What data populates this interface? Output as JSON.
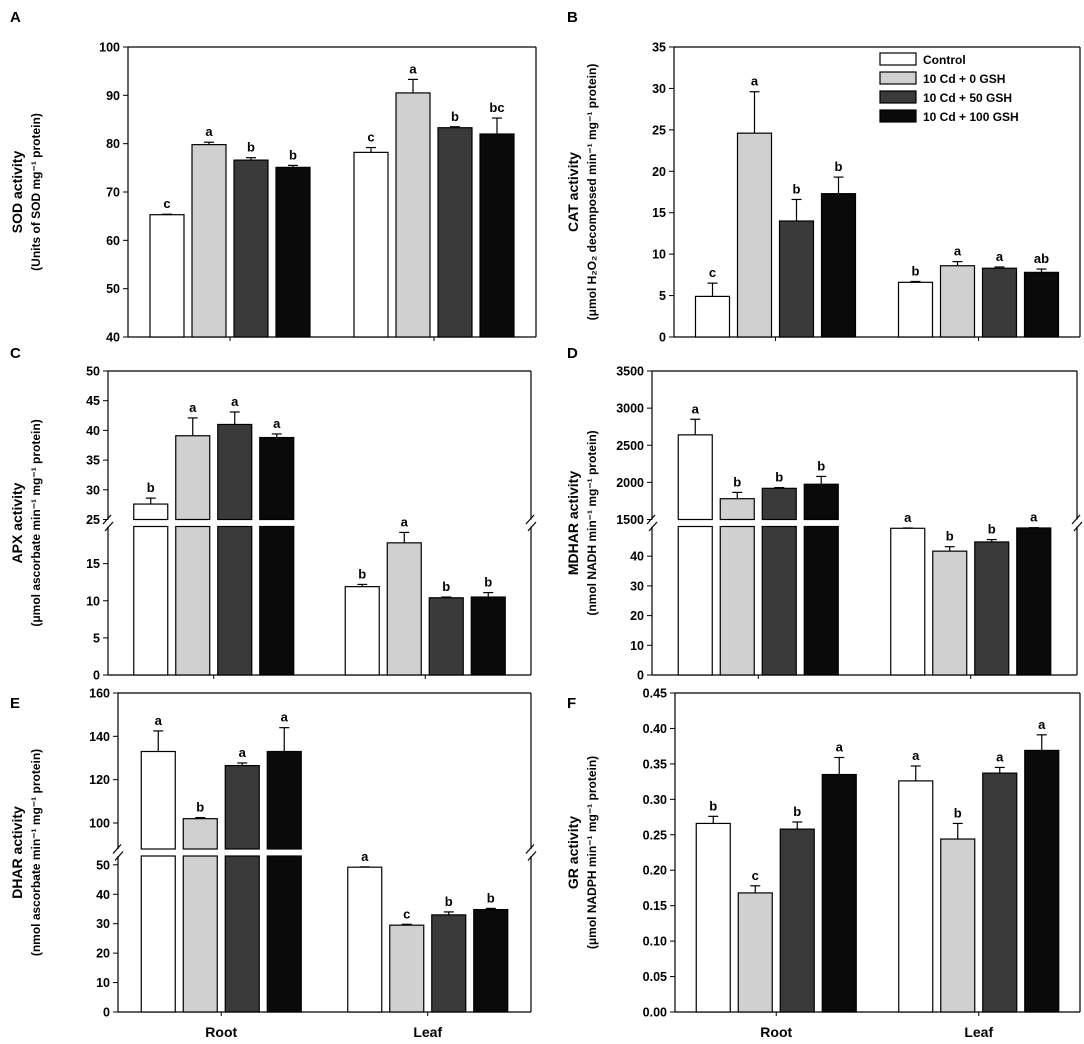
{
  "figure": {
    "categories": [
      "Root",
      "Leaf"
    ],
    "legend": [
      "Control",
      "10 Cd + 0 GSH",
      "10 Cd + 50 GSH",
      "10 Cd + 100 GSH"
    ],
    "colors": [
      "#ffffff",
      "#d0d0d0",
      "#3a3a3a",
      "#0a0a0a"
    ]
  },
  "chart_data": [
    {
      "type": "bar",
      "panel": "A",
      "ylabel": "SOD activity",
      "ylabel_unit": "(Units of SOD mg⁻¹ protein)",
      "categories": [
        "Root",
        "Leaf"
      ],
      "y_segments": [
        {
          "range": [
            40,
            100
          ],
          "ticks": [
            40,
            50,
            60,
            70,
            80,
            90,
            100
          ]
        }
      ],
      "series": [
        {
          "name": "Control",
          "values": [
            65.3,
            78.2
          ],
          "errors": [
            0.1,
            1.0
          ],
          "letters": [
            "c",
            "c"
          ]
        },
        {
          "name": "10 Cd + 0 GSH",
          "values": [
            79.8,
            90.5
          ],
          "errors": [
            0.5,
            2.8
          ],
          "letters": [
            "a",
            "a"
          ]
        },
        {
          "name": "10 Cd + 50 GSH",
          "values": [
            76.6,
            83.3
          ],
          "errors": [
            0.5,
            0.2
          ],
          "letters": [
            "b",
            "b"
          ]
        },
        {
          "name": "10 Cd + 100 GSH",
          "values": [
            75.1,
            82.0
          ],
          "errors": [
            0.4,
            3.3
          ],
          "letters": [
            "b",
            "bc"
          ]
        }
      ]
    },
    {
      "type": "bar",
      "panel": "B",
      "ylabel": "CAT activity",
      "ylabel_unit": "(μmol H₂O₂ decomposed min⁻¹ mg⁻¹ protein)",
      "categories": [
        "Root",
        "Leaf"
      ],
      "legend_position": "top-right",
      "y_segments": [
        {
          "range": [
            0,
            35
          ],
          "ticks": [
            0,
            5,
            10,
            15,
            20,
            25,
            30,
            35
          ]
        }
      ],
      "series": [
        {
          "name": "Control",
          "values": [
            4.9,
            6.6
          ],
          "errors": [
            1.6,
            0.1
          ],
          "letters": [
            "c",
            "b"
          ]
        },
        {
          "name": "10 Cd + 0 GSH",
          "values": [
            24.6,
            8.6
          ],
          "errors": [
            5.0,
            0.5
          ],
          "letters": [
            "a",
            "a"
          ]
        },
        {
          "name": "10 Cd + 50 GSH",
          "values": [
            14.0,
            8.3
          ],
          "errors": [
            2.6,
            0.15
          ],
          "letters": [
            "b",
            "a"
          ]
        },
        {
          "name": "10 Cd + 100 GSH",
          "values": [
            17.3,
            7.8
          ],
          "errors": [
            2.0,
            0.4
          ],
          "letters": [
            "b",
            "ab"
          ]
        }
      ]
    },
    {
      "type": "bar",
      "panel": "C",
      "ylabel": "APX activity",
      "ylabel_unit": "(μmol ascorbate min⁻¹ mg⁻¹ protein)",
      "categories": [
        "Root",
        "Leaf"
      ],
      "y_segments": [
        {
          "range": [
            0,
            20
          ],
          "ticks": [
            0,
            5,
            10,
            15
          ]
        },
        {
          "range": [
            25,
            50
          ],
          "ticks": [
            25,
            30,
            35,
            40,
            45,
            50
          ]
        }
      ],
      "series": [
        {
          "name": "Control",
          "values": [
            27.6,
            11.9
          ],
          "errors": [
            1.0,
            0.3
          ],
          "letters": [
            "b",
            "b"
          ]
        },
        {
          "name": "10 Cd + 0 GSH",
          "values": [
            39.1,
            17.8
          ],
          "errors": [
            3.0,
            1.4
          ],
          "letters": [
            "a",
            "a"
          ]
        },
        {
          "name": "10 Cd + 50 GSH",
          "values": [
            41.0,
            10.4
          ],
          "errors": [
            2.1,
            0.1
          ],
          "letters": [
            "a",
            "b"
          ]
        },
        {
          "name": "10 Cd + 100 GSH",
          "values": [
            38.8,
            10.5
          ],
          "errors": [
            0.6,
            0.6
          ],
          "letters": [
            "a",
            "b"
          ]
        }
      ]
    },
    {
      "type": "bar",
      "panel": "D",
      "ylabel": "MDHAR activity",
      "ylabel_unit": "(nmol NADH min⁻¹ mg⁻¹ protein)",
      "categories": [
        "Root",
        "Leaf"
      ],
      "y_segments": [
        {
          "range": [
            0,
            50
          ],
          "ticks": [
            0,
            10,
            20,
            30,
            40
          ]
        },
        {
          "range": [
            1500,
            3500
          ],
          "ticks": [
            1500,
            2000,
            2500,
            3000,
            3500
          ]
        }
      ],
      "series": [
        {
          "name": "Control",
          "values": [
            2640,
            49.4
          ],
          "errors": [
            210,
            0.1
          ],
          "letters": [
            "a",
            "a"
          ]
        },
        {
          "name": "10 Cd + 0 GSH",
          "values": [
            1780,
            41.7
          ],
          "errors": [
            85,
            1.5
          ],
          "letters": [
            "b",
            "b"
          ]
        },
        {
          "name": "10 Cd + 50 GSH",
          "values": [
            1920,
            44.8
          ],
          "errors": [
            10,
            0.8
          ],
          "letters": [
            "b",
            "b"
          ]
        },
        {
          "name": "10 Cd + 100 GSH",
          "values": [
            1975,
            49.5
          ],
          "errors": [
            105,
            0.1
          ],
          "letters": [
            "b",
            "a"
          ]
        }
      ]
    },
    {
      "type": "bar",
      "panel": "E",
      "ylabel": "DHAR activity",
      "ylabel_unit": "(nmol ascorbate min⁻¹ mg⁻¹ protein)",
      "categories": [
        "Root",
        "Leaf"
      ],
      "y_segments": [
        {
          "range": [
            0,
            53
          ],
          "ticks": [
            0,
            10,
            20,
            30,
            40,
            50
          ]
        },
        {
          "range": [
            88,
            160
          ],
          "ticks": [
            100,
            120,
            140,
            160
          ]
        }
      ],
      "series": [
        {
          "name": "Control",
          "values": [
            133,
            49.2
          ],
          "errors": [
            9.5,
            0.1
          ],
          "letters": [
            "a",
            "a"
          ]
        },
        {
          "name": "10 Cd + 0 GSH",
          "values": [
            102,
            29.5
          ],
          "errors": [
            0.5,
            0.3
          ],
          "letters": [
            "b",
            "c"
          ]
        },
        {
          "name": "10 Cd + 50 GSH",
          "values": [
            126.5,
            33.0
          ],
          "errors": [
            1.2,
            1.0
          ],
          "letters": [
            "a",
            "b"
          ]
        },
        {
          "name": "10 Cd + 100 GSH",
          "values": [
            133,
            34.8
          ],
          "errors": [
            11,
            0.4
          ],
          "letters": [
            "a",
            "b"
          ]
        }
      ]
    },
    {
      "type": "bar",
      "panel": "F",
      "ylabel": "GR activity",
      "ylabel_unit": "(μmol NADPH min⁻¹ mg⁻¹ protein)",
      "categories": [
        "Root",
        "Leaf"
      ],
      "y_segments": [
        {
          "range": [
            0,
            0.45
          ],
          "ticks": [
            "0.00",
            "0.05",
            "0.10",
            "0.15",
            "0.20",
            "0.25",
            "0.30",
            "0.35",
            "0.40",
            "0.45"
          ]
        }
      ],
      "series": [
        {
          "name": "Control",
          "values": [
            0.266,
            0.326
          ],
          "errors": [
            0.01,
            0.021
          ],
          "letters": [
            "b",
            "a"
          ]
        },
        {
          "name": "10 Cd + 0 GSH",
          "values": [
            0.168,
            0.244
          ],
          "errors": [
            0.01,
            0.022
          ],
          "letters": [
            "c",
            "b"
          ]
        },
        {
          "name": "10 Cd + 50 GSH",
          "values": [
            0.258,
            0.337
          ],
          "errors": [
            0.01,
            0.008
          ],
          "letters": [
            "b",
            "a"
          ]
        },
        {
          "name": "10 Cd + 100 GSH",
          "values": [
            0.335,
            0.369
          ],
          "errors": [
            0.024,
            0.022
          ],
          "letters": [
            "a",
            "a"
          ]
        }
      ]
    }
  ]
}
